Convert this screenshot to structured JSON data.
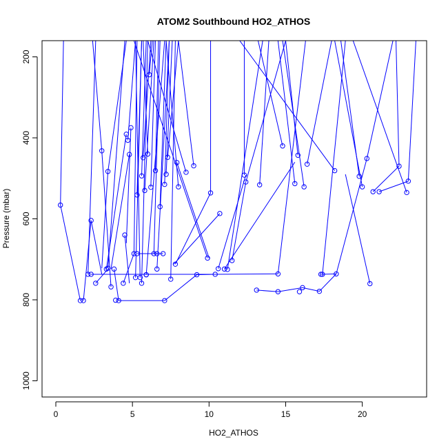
{
  "chart_data": {
    "type": "scatter",
    "title": "ATOM2 Southbound HO2_ATHOS",
    "xlabel": "HO2_ATHOS",
    "ylabel": "Pressure (mbar)",
    "xlim": [
      -0.9,
      24.2
    ],
    "ylim": [
      1040,
      160
    ],
    "y_reversed": true,
    "x_ticks": [
      0,
      5,
      10,
      15,
      20
    ],
    "y_ticks": [
      200,
      400,
      600,
      800,
      1000
    ],
    "grid": false,
    "series_color": "#0000ff",
    "marker": "open-circle",
    "connected": true,
    "points": [
      [
        0.3,
        566
      ],
      [
        1.6,
        802
      ],
      [
        1.8,
        802
      ],
      [
        2.3,
        604
      ],
      [
        2.1,
        737
      ],
      [
        2.3,
        737
      ],
      [
        2.6,
        759
      ],
      [
        3.0,
        432
      ],
      [
        3.3,
        724
      ],
      [
        3.4,
        483
      ],
      [
        3.4,
        722
      ],
      [
        3.6,
        768
      ],
      [
        3.8,
        724
      ],
      [
        3.9,
        801
      ],
      [
        4.1,
        802
      ],
      [
        4.4,
        759
      ],
      [
        4.5,
        640
      ],
      [
        4.6,
        391
      ],
      [
        4.7,
        406
      ],
      [
        4.8,
        441
      ],
      [
        4.9,
        375
      ],
      [
        5.1,
        686
      ],
      [
        5.2,
        745
      ],
      [
        5.3,
        686
      ],
      [
        5.3,
        541
      ],
      [
        5.5,
        745
      ],
      [
        5.6,
        759
      ],
      [
        5.6,
        494
      ],
      [
        5.7,
        449
      ],
      [
        5.8,
        530
      ],
      [
        5.9,
        738
      ],
      [
        5.9,
        738
      ],
      [
        6.0,
        440
      ],
      [
        6.1,
        244
      ],
      [
        6.2,
        522
      ],
      [
        6.4,
        686
      ],
      [
        6.5,
        481
      ],
      [
        6.6,
        724
      ],
      [
        6.6,
        686
      ],
      [
        6.8,
        570
      ],
      [
        7.0,
        686
      ],
      [
        7.1,
        802
      ],
      [
        7.1,
        515
      ],
      [
        7.2,
        490
      ],
      [
        7.3,
        448
      ],
      [
        7.5,
        749
      ],
      [
        7.8,
        712
      ],
      [
        7.9,
        461
      ],
      [
        8.0,
        521
      ],
      [
        8.5,
        485
      ],
      [
        9.0,
        469
      ],
      [
        9.2,
        738
      ],
      [
        9.9,
        697
      ],
      [
        10.1,
        536
      ],
      [
        10.4,
        737
      ],
      [
        10.6,
        723
      ],
      [
        10.7,
        587
      ],
      [
        11.0,
        724
      ],
      [
        11.2,
        725
      ],
      [
        11.5,
        703
      ],
      [
        12.3,
        492
      ],
      [
        12.4,
        509
      ],
      [
        13.1,
        776
      ],
      [
        13.3,
        516
      ],
      [
        14.5,
        780
      ],
      [
        14.5,
        736
      ],
      [
        14.8,
        420
      ],
      [
        15.6,
        513
      ],
      [
        15.8,
        443
      ],
      [
        15.9,
        780
      ],
      [
        16.1,
        770
      ],
      [
        16.2,
        521
      ],
      [
        16.4,
        465
      ],
      [
        17.2,
        779
      ],
      [
        17.3,
        737
      ],
      [
        17.4,
        737
      ],
      [
        18.2,
        481
      ],
      [
        18.3,
        736
      ],
      [
        19.8,
        495
      ],
      [
        20.0,
        521
      ],
      [
        20.3,
        451
      ],
      [
        20.5,
        760
      ],
      [
        20.7,
        533
      ],
      [
        21.1,
        533
      ],
      [
        22.4,
        470
      ],
      [
        22.9,
        535
      ],
      [
        23.0,
        507
      ]
    ],
    "segments": [
      [
        0.3,
        566,
        0.5,
        160
      ],
      [
        0.3,
        566,
        1.6,
        802
      ],
      [
        1.8,
        802,
        2.3,
        604
      ],
      [
        2.3,
        604,
        3.0,
        737
      ],
      [
        2.1,
        737,
        2.6,
        160
      ],
      [
        2.6,
        759,
        3.4,
        724
      ],
      [
        3.0,
        432,
        2.4,
        160
      ],
      [
        3.0,
        432,
        3.6,
        768
      ],
      [
        3.4,
        483,
        3.0,
        722
      ],
      [
        3.4,
        483,
        4.6,
        160
      ],
      [
        3.4,
        722,
        4.5,
        160
      ],
      [
        3.8,
        724,
        4.1,
        802
      ],
      [
        4.1,
        802,
        7.1,
        802
      ],
      [
        4.4,
        759,
        5.1,
        686
      ],
      [
        4.5,
        640,
        4.8,
        759
      ],
      [
        4.6,
        391,
        3.3,
        724
      ],
      [
        4.7,
        406,
        5.2,
        160
      ],
      [
        4.8,
        441,
        3.6,
        724
      ],
      [
        4.9,
        375,
        4.6,
        660
      ],
      [
        5.1,
        686,
        5.3,
        160
      ],
      [
        5.2,
        745,
        5.6,
        160
      ],
      [
        5.3,
        686,
        7.0,
        686
      ],
      [
        5.3,
        541,
        5.6,
        160
      ],
      [
        5.5,
        745,
        5.2,
        160
      ],
      [
        5.6,
        759,
        6.0,
        160
      ],
      [
        5.6,
        494,
        5.9,
        160
      ],
      [
        5.7,
        449,
        6.2,
        160
      ],
      [
        5.8,
        530,
        6.4,
        160
      ],
      [
        5.9,
        738,
        7.1,
        160
      ],
      [
        6.0,
        440,
        5.7,
        160
      ],
      [
        6.1,
        244,
        6.3,
        160
      ],
      [
        6.2,
        522,
        6.5,
        160
      ],
      [
        6.4,
        686,
        6.8,
        160
      ],
      [
        6.5,
        481,
        6.7,
        160
      ],
      [
        6.6,
        724,
        7.4,
        160
      ],
      [
        6.8,
        570,
        7.2,
        160
      ],
      [
        7.1,
        515,
        7.4,
        160
      ],
      [
        7.2,
        490,
        7.6,
        160
      ],
      [
        7.3,
        448,
        8.0,
        160
      ],
      [
        7.5,
        749,
        7.8,
        160
      ],
      [
        7.8,
        712,
        10.1,
        536
      ],
      [
        7.9,
        461,
        10.0,
        697
      ],
      [
        8.0,
        521,
        7.2,
        160
      ],
      [
        8.5,
        485,
        6.0,
        160
      ],
      [
        9.0,
        469,
        8.0,
        160
      ],
      [
        9.9,
        697,
        5.1,
        160
      ],
      [
        10.1,
        536,
        10.1,
        160
      ],
      [
        2.3,
        737,
        10.4,
        737
      ],
      [
        10.4,
        737,
        14.5,
        736
      ],
      [
        10.6,
        723,
        12.4,
        492
      ],
      [
        10.7,
        587,
        7.7,
        712
      ],
      [
        11.0,
        724,
        15.6,
        460
      ],
      [
        11.2,
        725,
        13.5,
        160
      ],
      [
        11.5,
        703,
        12.4,
        509
      ],
      [
        12.3,
        492,
        12.3,
        160
      ],
      [
        12.4,
        509,
        15.0,
        160
      ],
      [
        13.1,
        776,
        14.5,
        780
      ],
      [
        13.3,
        516,
        13.9,
        160
      ],
      [
        14.5,
        780,
        16.1,
        770
      ],
      [
        14.5,
        736,
        16.3,
        160
      ],
      [
        14.8,
        420,
        13.2,
        160
      ],
      [
        15.6,
        513,
        14.5,
        160
      ],
      [
        15.8,
        443,
        15.0,
        160
      ],
      [
        16.2,
        521,
        14.8,
        160
      ],
      [
        16.4,
        465,
        18.0,
        160
      ],
      [
        17.2,
        779,
        18.3,
        736
      ],
      [
        17.4,
        737,
        18.9,
        160
      ],
      [
        18.2,
        481,
        12.0,
        160
      ],
      [
        18.3,
        736,
        20.3,
        451
      ],
      [
        19.8,
        495,
        18.6,
        160
      ],
      [
        20.0,
        521,
        18.2,
        160
      ],
      [
        20.3,
        451,
        22.0,
        160
      ],
      [
        20.5,
        760,
        18.9,
        490
      ],
      [
        20.7,
        533,
        22.4,
        470
      ],
      [
        21.1,
        533,
        23.0,
        507
      ],
      [
        22.4,
        470,
        22.2,
        160
      ],
      [
        22.9,
        535,
        19.4,
        160
      ],
      [
        23.0,
        507,
        23.5,
        160
      ],
      [
        7.1,
        802,
        9.2,
        738
      ],
      [
        9.2,
        738,
        10.4,
        737
      ],
      [
        16.1,
        770,
        17.2,
        779
      ],
      [
        17.3,
        737,
        18.3,
        736
      ]
    ]
  }
}
